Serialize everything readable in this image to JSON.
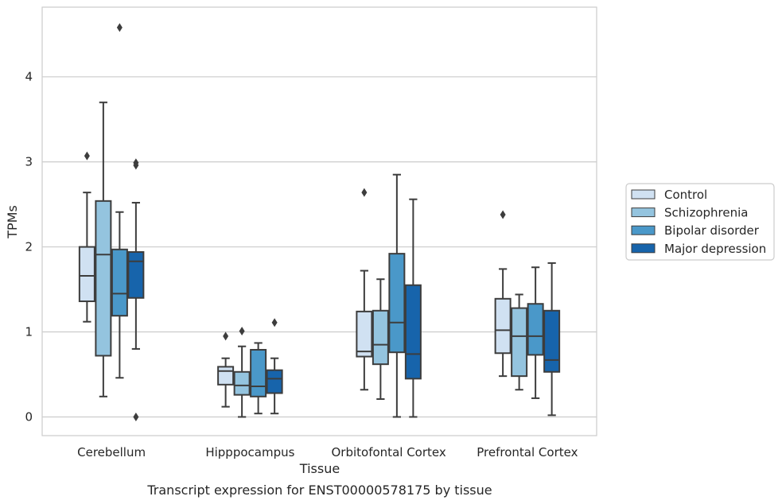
{
  "chart_data": {
    "type": "box",
    "title": "",
    "caption": "Transcript expression for ENST00000578175 by tissue",
    "xlabel": "Tissue",
    "ylabel": "TPMs",
    "ylim": [
      -0.22,
      4.82
    ],
    "yticks": [
      0,
      1,
      2,
      3,
      4
    ],
    "grid": "horizontal",
    "legend_position": "right",
    "categories": [
      "Cerebellum",
      "Hipppocampus",
      "Orbitofontal Cortex",
      "Prefrontal Cortex"
    ],
    "series": [
      {
        "name": "Control",
        "color": "#d0e1f2",
        "boxes": [
          {
            "whisker_low": 1.12,
            "q1": 1.36,
            "median": 1.66,
            "q3": 2.0,
            "whisker_high": 2.64,
            "outliers": [
              3.07
            ]
          },
          {
            "whisker_low": 0.12,
            "q1": 0.38,
            "median": 0.54,
            "q3": 0.59,
            "whisker_high": 0.69,
            "outliers": [
              0.95
            ]
          },
          {
            "whisker_low": 0.32,
            "q1": 0.71,
            "median": 0.77,
            "q3": 1.24,
            "whisker_high": 1.72,
            "outliers": [
              2.64
            ]
          },
          {
            "whisker_low": 0.48,
            "q1": 0.75,
            "median": 1.02,
            "q3": 1.39,
            "whisker_high": 1.74,
            "outliers": [
              2.38
            ]
          }
        ]
      },
      {
        "name": "Schizophrenia",
        "color": "#94c4df",
        "boxes": [
          {
            "whisker_low": 0.24,
            "q1": 0.72,
            "median": 1.91,
            "q3": 2.54,
            "whisker_high": 3.7,
            "outliers": []
          },
          {
            "whisker_low": 0.0,
            "q1": 0.26,
            "median": 0.37,
            "q3": 0.53,
            "whisker_high": 0.83,
            "outliers": [
              1.01
            ]
          },
          {
            "whisker_low": 0.21,
            "q1": 0.62,
            "median": 0.85,
            "q3": 1.25,
            "whisker_high": 1.62,
            "outliers": []
          },
          {
            "whisker_low": 0.32,
            "q1": 0.48,
            "median": 0.95,
            "q3": 1.28,
            "whisker_high": 1.44,
            "outliers": []
          }
        ]
      },
      {
        "name": "Bipolar disorder",
        "color": "#4a98c9",
        "boxes": [
          {
            "whisker_low": 0.46,
            "q1": 1.19,
            "median": 1.45,
            "q3": 1.97,
            "whisker_high": 2.41,
            "outliers": [
              4.58
            ]
          },
          {
            "whisker_low": 0.04,
            "q1": 0.24,
            "median": 0.36,
            "q3": 0.79,
            "whisker_high": 0.87,
            "outliers": []
          },
          {
            "whisker_low": 0.0,
            "q1": 0.76,
            "median": 1.11,
            "q3": 1.92,
            "whisker_high": 2.85,
            "outliers": []
          },
          {
            "whisker_low": 0.22,
            "q1": 0.73,
            "median": 0.95,
            "q3": 1.33,
            "whisker_high": 1.76,
            "outliers": []
          }
        ]
      },
      {
        "name": "Major depression",
        "color": "#1764ab",
        "boxes": [
          {
            "whisker_low": 0.8,
            "q1": 1.4,
            "median": 1.83,
            "q3": 1.94,
            "whisker_high": 2.52,
            "outliers": [
              2.96,
              2.99,
              0.0
            ]
          },
          {
            "whisker_low": 0.04,
            "q1": 0.28,
            "median": 0.45,
            "q3": 0.55,
            "whisker_high": 0.69,
            "outliers": [
              1.11
            ]
          },
          {
            "whisker_low": 0.0,
            "q1": 0.45,
            "median": 0.74,
            "q3": 1.55,
            "whisker_high": 2.56,
            "outliers": []
          },
          {
            "whisker_low": 0.02,
            "q1": 0.53,
            "median": 0.67,
            "q3": 1.25,
            "whisker_high": 1.81,
            "outliers": []
          }
        ]
      }
    ]
  }
}
